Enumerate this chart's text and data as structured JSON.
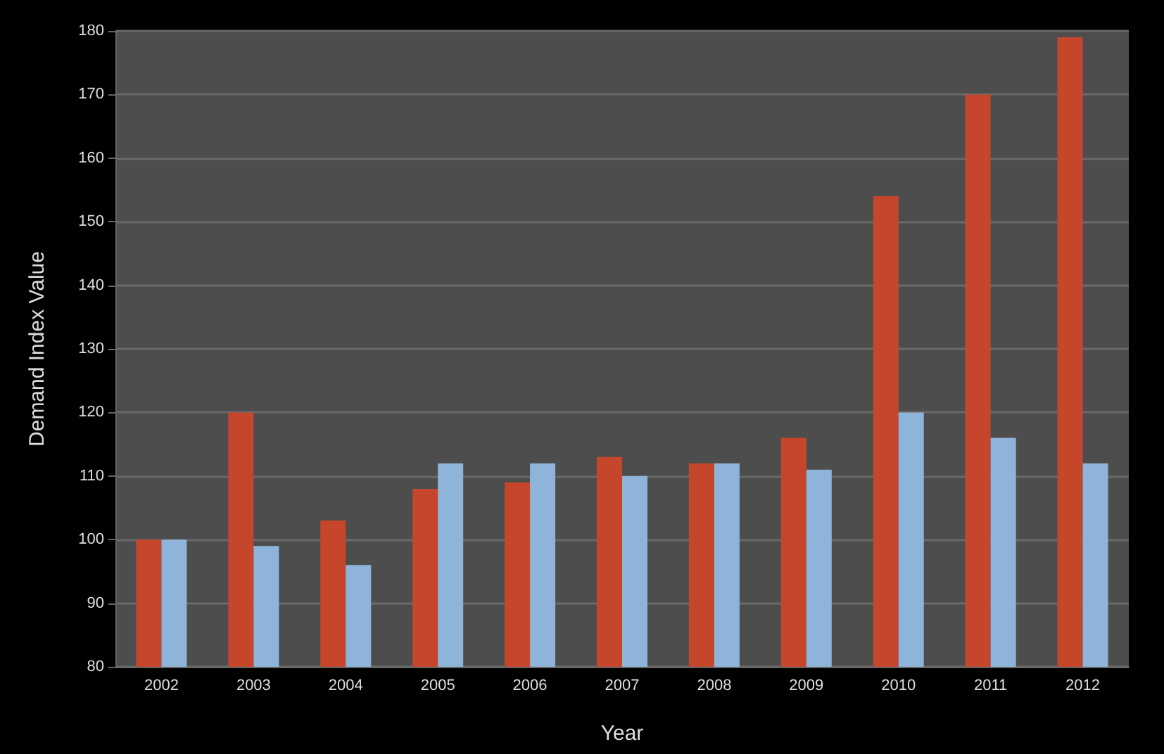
{
  "chart_data": {
    "type": "bar",
    "xlabel": "Year",
    "ylabel": "Demand Index Value",
    "categories": [
      "2002",
      "2003",
      "2004",
      "2005",
      "2006",
      "2007",
      "2008",
      "2009",
      "2010",
      "2011",
      "2012"
    ],
    "series": [
      {
        "color": "#c6462b",
        "values": [
          100,
          120,
          103,
          108,
          109,
          113,
          112,
          116,
          154,
          170,
          179
        ]
      },
      {
        "color": "#8fb4da",
        "values": [
          100,
          99,
          96,
          112,
          112,
          110,
          112,
          111,
          120,
          116,
          112
        ]
      }
    ],
    "ylim": [
      80,
      180
    ],
    "yticks": [
      80,
      90,
      100,
      110,
      120,
      130,
      140,
      150,
      160,
      170,
      180
    ],
    "grid": "y"
  }
}
